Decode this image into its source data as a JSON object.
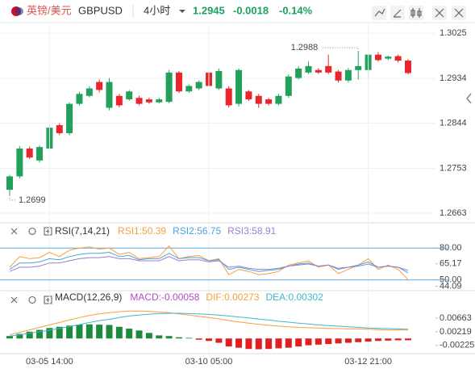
{
  "header": {
    "pair_cn": "英镑/美元",
    "symbol": "GBPUSD",
    "interval": "4小时",
    "price": "1.2945",
    "change": "-0.0018",
    "change_pct": "-0.14%"
  },
  "chart_data": [
    {
      "type": "candlestick",
      "categories": [
        null,
        null,
        null,
        null,
        "03-05 14:00",
        null,
        null,
        null,
        null,
        null,
        null,
        null,
        null,
        null,
        null,
        null,
        null,
        null,
        null,
        null,
        "03-10 05:00",
        null,
        null,
        null,
        null,
        null,
        null,
        null,
        null,
        null,
        null,
        null,
        null,
        null,
        null,
        null,
        "03-12 21:00",
        null,
        null,
        null,
        null
      ],
      "open": [
        1.271,
        1.2737,
        1.2793,
        1.2769,
        1.2793,
        1.284,
        1.2824,
        1.2883,
        1.2899,
        1.2927,
        1.2875,
        1.2899,
        1.2892,
        1.2895,
        1.2892,
        1.2886,
        1.2887,
        1.2946,
        1.2908,
        1.2914,
        1.2946,
        1.2914,
        1.2914,
        1.2883,
        1.2908,
        1.2899,
        1.2892,
        1.2883,
        1.2899,
        1.2935,
        1.2946,
        1.2951,
        1.2959,
        1.2948,
        1.293,
        1.2951,
        1.2951,
        1.2982,
        1.2974,
        1.2979,
        1.297
      ],
      "high": [
        1.274,
        1.2798,
        1.2797,
        1.2799,
        1.2838,
        1.2844,
        1.2886,
        1.2907,
        1.2918,
        1.2932,
        1.2935,
        1.2903,
        1.2911,
        1.2899,
        1.2895,
        1.2895,
        1.2951,
        1.2949,
        1.2922,
        1.293,
        1.2949,
        1.2954,
        1.2918,
        1.2954,
        1.2911,
        1.2903,
        1.2895,
        1.2903,
        1.2942,
        1.2959,
        1.2968,
        1.2955,
        1.2982,
        1.2951,
        1.2955,
        1.2988,
        1.2985,
        1.2987,
        1.298,
        1.2982,
        1.2973
      ],
      "low": [
        1.2699,
        1.2733,
        1.2772,
        1.2765,
        1.279,
        1.282,
        1.282,
        1.288,
        1.2896,
        1.2906,
        1.287,
        1.2876,
        1.2889,
        1.288,
        1.2883,
        1.2884,
        1.2884,
        1.2905,
        1.2905,
        1.2911,
        1.2916,
        1.2911,
        1.2876,
        1.2878,
        1.2889,
        1.2875,
        1.288,
        1.288,
        1.2895,
        1.2932,
        1.2943,
        1.2943,
        1.2943,
        1.2926,
        1.2926,
        1.2932,
        1.2935,
        1.2968,
        1.2971,
        1.2966,
        1.2942
      ],
      "close": [
        1.2737,
        1.2793,
        1.2775,
        1.2796,
        1.2835,
        1.2824,
        1.2883,
        1.2903,
        1.2914,
        1.2911,
        1.2927,
        1.288,
        1.2908,
        1.2883,
        1.2886,
        1.2892,
        1.2946,
        1.2908,
        1.2919,
        1.2927,
        1.2919,
        1.2949,
        1.288,
        1.2951,
        1.2892,
        1.2883,
        1.2883,
        1.2899,
        1.2938,
        1.2954,
        1.2959,
        1.2946,
        1.2946,
        1.293,
        1.2951,
        1.2959,
        1.2982,
        1.2971,
        1.2978,
        1.297,
        1.2945
      ],
      "up_color": "#23a05a",
      "down_color": "#e8262b",
      "ylim": [
        1.265,
        1.304
      ],
      "yticks": [
        1.2663,
        1.2753,
        1.2844,
        1.2934,
        1.3025
      ],
      "grid": true
    },
    {
      "type": "line",
      "title": "RSI(7,14,21)",
      "series": [
        {
          "name": "RSI1:50.39",
          "color": "#f5a03c",
          "values": [
            62,
            72,
            70,
            71,
            76,
            72,
            78,
            80,
            81,
            79,
            80,
            74,
            76,
            70,
            71,
            72,
            82,
            70,
            72,
            73,
            68,
            70,
            55,
            60,
            58,
            55,
            56,
            58,
            64,
            66,
            68,
            62,
            64,
            56,
            60,
            64,
            70,
            60,
            64,
            60,
            50.39
          ]
        },
        {
          "name": "RSI2:56.75",
          "color": "#4aa3df",
          "values": [
            60,
            66,
            66,
            67,
            70,
            69,
            72,
            74,
            75,
            75,
            76,
            72,
            73,
            69,
            70,
            70,
            75,
            70,
            71,
            71,
            68,
            69,
            60,
            62,
            60,
            58,
            59,
            60,
            63,
            65,
            66,
            63,
            64,
            60,
            62,
            64,
            67,
            62,
            63,
            62,
            56.75
          ]
        },
        {
          "name": "RSI3:58.91",
          "color": "#9b7fd0",
          "values": [
            58,
            62,
            62,
            63,
            66,
            66,
            68,
            70,
            71,
            71,
            72,
            70,
            70,
            68,
            68,
            68,
            72,
            68,
            69,
            69,
            67,
            68,
            62,
            63,
            61,
            60,
            60,
            61,
            63,
            64,
            65,
            63,
            64,
            61,
            62,
            63,
            65,
            62,
            63,
            62,
            58.91
          ]
        }
      ],
      "levels": [
        80,
        50
      ],
      "level_color": "#5aa9e6",
      "ylim": [
        43,
        87
      ],
      "yticks": [
        {
          "value": 80,
          "label": "80.00"
        },
        {
          "value": 65.17,
          "label": "65.17"
        },
        {
          "value": 50,
          "label": "50.00"
        },
        {
          "value": 44.09,
          "label": "44.09"
        }
      ]
    },
    {
      "type": "macd",
      "title": "MACD(12,26,9)",
      "histogram": {
        "name": "MACD:-0.00058",
        "color": "#b14fc2",
        "up_color": "#1e8a3c",
        "down_color": "#e02020",
        "values": [
          0.0008,
          0.0015,
          0.0022,
          0.0028,
          0.0034,
          0.0038,
          0.0042,
          0.0045,
          0.0046,
          0.0045,
          0.0044,
          0.0038,
          0.0032,
          0.0026,
          0.0018,
          0.001,
          0.0008,
          0.0004,
          0.0002,
          -0.0004,
          -0.0008,
          -0.0014,
          -0.0026,
          -0.003,
          -0.0034,
          -0.0035,
          -0.0034,
          -0.0032,
          -0.003,
          -0.0026,
          -0.0022,
          -0.002,
          -0.0018,
          -0.0016,
          -0.0014,
          -0.0012,
          -0.001,
          -0.0008,
          -0.0007,
          -0.0006,
          -0.00058
        ]
      },
      "series": [
        {
          "name": "DIF:0.00273",
          "color": "#f5a03c",
          "values": [
            0.0012,
            0.002,
            0.0028,
            0.0036,
            0.0044,
            0.0052,
            0.006,
            0.0068,
            0.0075,
            0.008,
            0.0084,
            0.0087,
            0.0089,
            0.0089,
            0.0088,
            0.0086,
            0.0084,
            0.008,
            0.0076,
            0.0072,
            0.0068,
            0.0064,
            0.0058,
            0.0054,
            0.005,
            0.0046,
            0.0043,
            0.004,
            0.0038,
            0.0036,
            0.0035,
            0.0034,
            0.0033,
            0.0032,
            0.0031,
            0.0031,
            0.003,
            0.0029,
            0.0028,
            0.0028,
            0.00273
          ]
        },
        {
          "name": "DEA:0.00302",
          "color": "#3fb8c9",
          "values": [
            0.0008,
            0.0012,
            0.0017,
            0.0022,
            0.0027,
            0.0033,
            0.0039,
            0.0045,
            0.0052,
            0.0058,
            0.0062,
            0.0068,
            0.0073,
            0.0076,
            0.0079,
            0.0081,
            0.0082,
            0.0082,
            0.0081,
            0.008,
            0.0078,
            0.0076,
            0.0073,
            0.007,
            0.0067,
            0.0063,
            0.006,
            0.0056,
            0.0053,
            0.005,
            0.0047,
            0.0044,
            0.0042,
            0.004,
            0.0038,
            0.0036,
            0.0034,
            0.0033,
            0.0032,
            0.0031,
            0.00302
          ]
        }
      ],
      "ylim": [
        -0.0044,
        0.0103
      ],
      "yticks": [
        0.00663,
        0.00219,
        -0.00225
      ]
    }
  ]
}
